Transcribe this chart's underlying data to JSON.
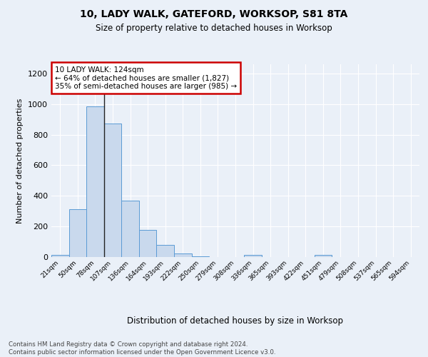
{
  "title1": "10, LADY WALK, GATEFORD, WORKSOP, S81 8TA",
  "title2": "Size of property relative to detached houses in Worksop",
  "xlabel": "Distribution of detached houses by size in Worksop",
  "ylabel": "Number of detached properties",
  "bin_labels": [
    "21sqm",
    "50sqm",
    "78sqm",
    "107sqm",
    "136sqm",
    "164sqm",
    "193sqm",
    "222sqm",
    "250sqm",
    "279sqm",
    "308sqm",
    "336sqm",
    "365sqm",
    "393sqm",
    "422sqm",
    "451sqm",
    "479sqm",
    "508sqm",
    "537sqm",
    "565sqm",
    "594sqm"
  ],
  "bar_heights": [
    12,
    315,
    985,
    872,
    370,
    178,
    78,
    22,
    5,
    0,
    0,
    12,
    0,
    0,
    0,
    12,
    0,
    0,
    0,
    0,
    0
  ],
  "bar_color": "#c9d9ed",
  "bar_edge_color": "#5b9bd5",
  "annotation_text": "10 LADY WALK: 124sqm\n← 64% of detached houses are smaller (1,827)\n35% of semi-detached houses are larger (985) →",
  "annotation_box_color": "#ffffff",
  "annotation_box_edge": "#cc0000",
  "ylim": [
    0,
    1260
  ],
  "yticks": [
    0,
    200,
    400,
    600,
    800,
    1000,
    1200
  ],
  "footnote": "Contains HM Land Registry data © Crown copyright and database right 2024.\nContains public sector information licensed under the Open Government Licence v3.0.",
  "bg_color": "#eaf0f8",
  "plot_bg_color": "#eaf0f8"
}
